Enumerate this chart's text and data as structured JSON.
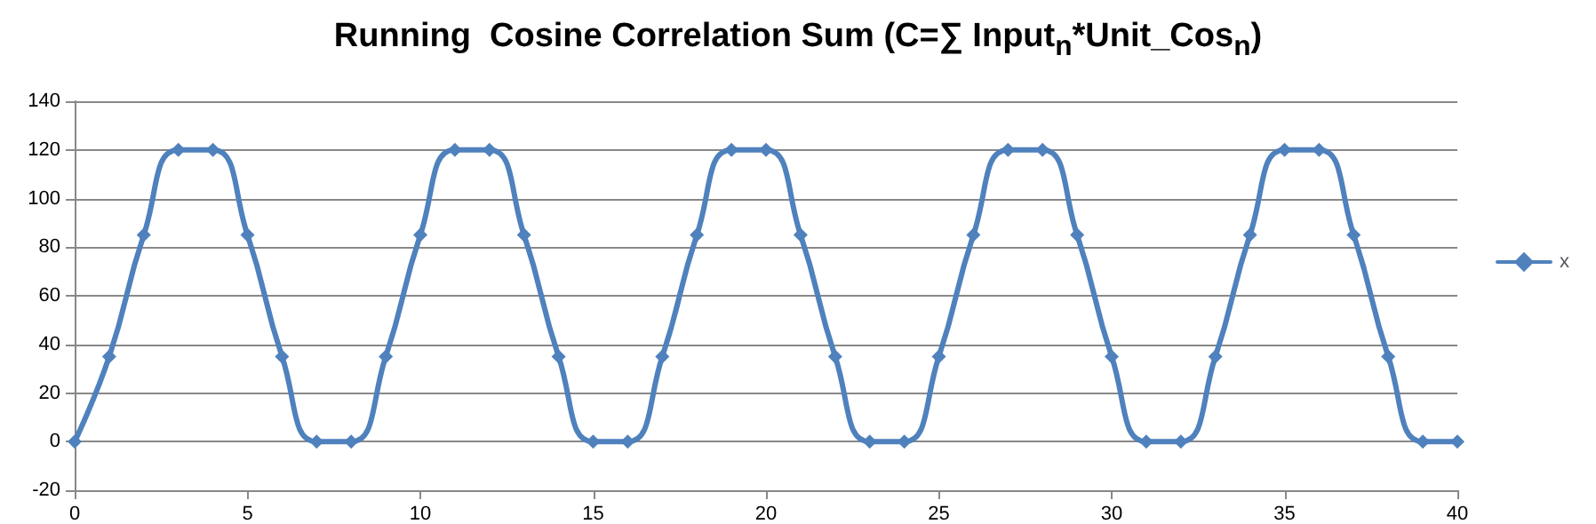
{
  "chart_data": {
    "type": "line",
    "title": "Running  Cosine Correlation Sum (C=∑ Input$_{n}$*Unit_Cos$_{n}$)",
    "x": [
      0,
      1,
      2,
      3,
      4,
      5,
      6,
      7,
      8,
      9,
      10,
      11,
      12,
      13,
      14,
      15,
      16,
      17,
      18,
      19,
      20,
      21,
      22,
      23,
      24,
      25,
      26,
      27,
      28,
      29,
      30,
      31,
      32,
      33,
      34,
      35,
      36,
      37,
      38,
      39,
      40
    ],
    "series": [
      {
        "name": "x",
        "color": "#4f81bd",
        "values": [
          0,
          35,
          85,
          120,
          120,
          85,
          35,
          0,
          0,
          35,
          85,
          120,
          120,
          85,
          35,
          0,
          0,
          35,
          85,
          120,
          120,
          85,
          35,
          0,
          0,
          35,
          85,
          120,
          120,
          85,
          35,
          0,
          0,
          35,
          85,
          120,
          120,
          85,
          35,
          0,
          0
        ]
      }
    ],
    "xlim": [
      0,
      40
    ],
    "xticks": [
      0,
      5,
      10,
      15,
      20,
      25,
      30,
      35,
      40
    ],
    "ylim": [
      -20,
      140
    ],
    "yticks": [
      -20,
      0,
      20,
      40,
      60,
      80,
      100,
      120,
      140
    ],
    "grid": "y",
    "legend": "right",
    "marker": "diamond",
    "line_style": "solid"
  }
}
